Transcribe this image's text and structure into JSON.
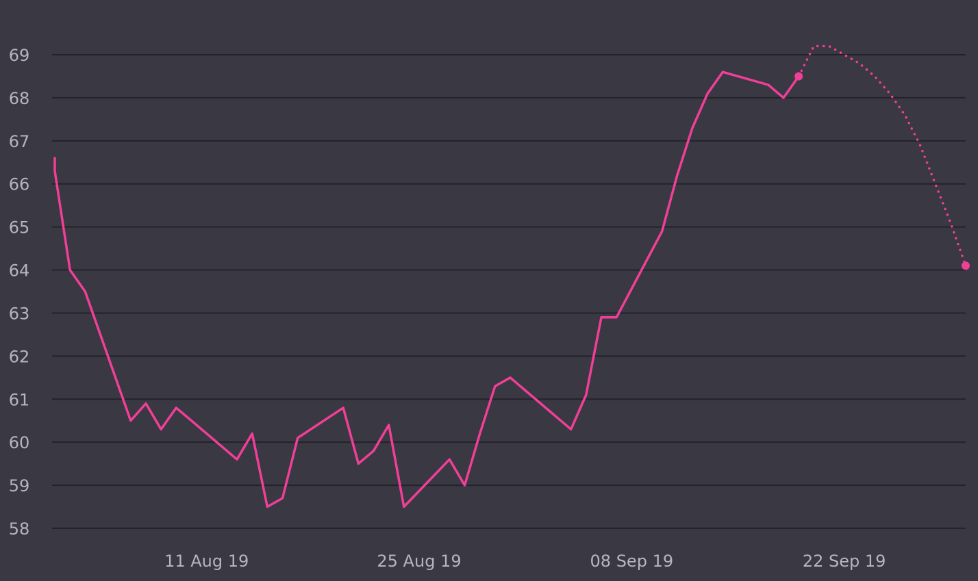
{
  "chart_data": {
    "type": "line",
    "title": "",
    "xlabel": "",
    "ylabel": "",
    "grid": true,
    "legend": "none",
    "ylim": [
      58,
      69
    ],
    "xlim": [
      "2019-08-01",
      "2019-09-30"
    ],
    "y_ticks": [
      "58",
      "59",
      "60",
      "61",
      "62",
      "63",
      "64",
      "65",
      "66",
      "67",
      "68",
      "69"
    ],
    "x_ticks": [
      {
        "date": "2019-08-11",
        "label": "11 Aug 19"
      },
      {
        "date": "2019-08-25",
        "label": "25 Aug 19"
      },
      {
        "date": "2019-09-08",
        "label": "08 Sep 19"
      },
      {
        "date": "2019-09-22",
        "label": "22 Sep 19"
      }
    ],
    "colors": {
      "series": "#f13f97",
      "background": "#393843",
      "grid": "#24232b",
      "tick_text": "#b6b4c0"
    },
    "series": [
      {
        "style": "solid",
        "points": [
          [
            "2019-08-01",
            66.6
          ],
          [
            "2019-08-01",
            66.3
          ],
          [
            "2019-08-02",
            64.0
          ],
          [
            "2019-08-03",
            63.5
          ],
          [
            "2019-08-06",
            60.5
          ],
          [
            "2019-08-07",
            60.9
          ],
          [
            "2019-08-08",
            60.3
          ],
          [
            "2019-08-09",
            60.8
          ],
          [
            "2019-08-10",
            60.5
          ],
          [
            "2019-08-13",
            59.6
          ],
          [
            "2019-08-14",
            60.2
          ],
          [
            "2019-08-15",
            58.5
          ],
          [
            "2019-08-16",
            58.7
          ],
          [
            "2019-08-17",
            60.1
          ],
          [
            "2019-08-20",
            60.8
          ],
          [
            "2019-08-21",
            59.5
          ],
          [
            "2019-08-22",
            59.8
          ],
          [
            "2019-08-23",
            60.4
          ],
          [
            "2019-08-24",
            58.5
          ],
          [
            "2019-08-27",
            59.6
          ],
          [
            "2019-08-28",
            59.0
          ],
          [
            "2019-08-29",
            60.2
          ],
          [
            "2019-08-30",
            61.3
          ],
          [
            "2019-08-31",
            61.5
          ],
          [
            "2019-09-04",
            60.3
          ],
          [
            "2019-09-05",
            61.1
          ],
          [
            "2019-09-06",
            62.9
          ],
          [
            "2019-09-07",
            62.9
          ],
          [
            "2019-09-10",
            64.9
          ],
          [
            "2019-09-11",
            66.2
          ],
          [
            "2019-09-12",
            67.3
          ],
          [
            "2019-09-13",
            68.1
          ],
          [
            "2019-09-14",
            68.6
          ],
          [
            "2019-09-17",
            68.3
          ],
          [
            "2019-09-18",
            68.0
          ],
          [
            "2019-09-19",
            68.5
          ]
        ]
      },
      {
        "style": "dotted",
        "points": [
          [
            "2019-09-19",
            68.5
          ],
          [
            "2019-09-20",
            69.2
          ],
          [
            "2019-09-21",
            69.2
          ],
          [
            "2019-09-22",
            69.0
          ],
          [
            "2019-09-23",
            68.8
          ],
          [
            "2019-09-24",
            68.5
          ],
          [
            "2019-09-25",
            68.1
          ],
          [
            "2019-09-26",
            67.6
          ],
          [
            "2019-09-27",
            66.9
          ],
          [
            "2019-09-28",
            66.0
          ],
          [
            "2019-09-29",
            65.1
          ],
          [
            "2019-09-30",
            64.1
          ]
        ],
        "markers": [
          [
            "2019-09-19",
            68.5
          ],
          [
            "2019-09-30",
            64.1
          ]
        ]
      }
    ]
  }
}
